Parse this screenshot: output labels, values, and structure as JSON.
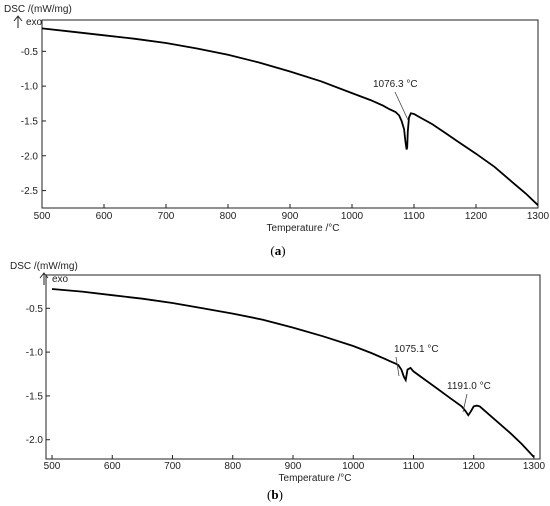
{
  "chart_data": [
    {
      "type": "line",
      "panel_label": "a",
      "ylabel": "DSC /(mW/mg)",
      "y_direction_label": "exo",
      "xlabel": "Temperature /°C",
      "xlim": [
        500,
        1300
      ],
      "ylim": [
        -2.75,
        -0.05
      ],
      "x_ticks": [
        500,
        600,
        700,
        800,
        900,
        1000,
        1100,
        1200,
        1300
      ],
      "y_ticks": [
        -0.5,
        -1.0,
        -1.5,
        -2.0,
        -2.5
      ],
      "y_tick_labels": [
        "-0.5",
        "-1.0",
        "-1.5",
        "-2.0",
        "-2.5"
      ],
      "grid": false,
      "series": [
        {
          "x": [
            500,
            550,
            600,
            650,
            700,
            750,
            800,
            850,
            900,
            950,
            1000,
            1030,
            1050,
            1060,
            1070,
            1076,
            1080,
            1084,
            1086,
            1088,
            1089,
            1090,
            1092,
            1095,
            1100,
            1110,
            1130,
            1150,
            1170,
            1200,
            1230,
            1260,
            1280,
            1300
          ],
          "y": [
            -0.17,
            -0.22,
            -0.27,
            -0.32,
            -0.38,
            -0.46,
            -0.55,
            -0.66,
            -0.79,
            -0.93,
            -1.1,
            -1.2,
            -1.28,
            -1.33,
            -1.37,
            -1.42,
            -1.5,
            -1.62,
            -1.78,
            -1.91,
            -1.88,
            -1.65,
            -1.45,
            -1.39,
            -1.4,
            -1.45,
            -1.55,
            -1.67,
            -1.79,
            -1.97,
            -2.16,
            -2.39,
            -2.54,
            -2.71
          ]
        }
      ],
      "annotations": [
        {
          "text": "1076.3 °C",
          "x": 1076.3,
          "y": -1.42
        }
      ]
    },
    {
      "type": "line",
      "panel_label": "b",
      "ylabel": "DSC /(mW/mg)",
      "y_direction_label": "exo",
      "xlabel": "Temperature /°C",
      "xlim": [
        490,
        1310
      ],
      "ylim": [
        -2.22,
        -0.12
      ],
      "x_ticks": [
        500,
        600,
        700,
        800,
        900,
        1000,
        1100,
        1200,
        1300
      ],
      "y_ticks": [
        -0.5,
        -1.0,
        -1.5,
        -2.0
      ],
      "y_tick_labels": [
        "-0.5",
        "-1.0",
        "-1.5",
        "-2.0"
      ],
      "grid": false,
      "series": [
        {
          "x": [
            500,
            550,
            600,
            650,
            700,
            750,
            800,
            850,
            900,
            950,
            1000,
            1030,
            1050,
            1060,
            1070,
            1075,
            1080,
            1084,
            1087,
            1090,
            1095,
            1100,
            1120,
            1140,
            1160,
            1180,
            1186,
            1191,
            1195,
            1200,
            1205,
            1210,
            1230,
            1260,
            1280,
            1300
          ],
          "y": [
            -0.28,
            -0.31,
            -0.35,
            -0.39,
            -0.44,
            -0.5,
            -0.56,
            -0.63,
            -0.72,
            -0.82,
            -0.93,
            -1.01,
            -1.07,
            -1.1,
            -1.13,
            -1.15,
            -1.2,
            -1.28,
            -1.32,
            -1.2,
            -1.18,
            -1.22,
            -1.32,
            -1.42,
            -1.52,
            -1.62,
            -1.67,
            -1.72,
            -1.68,
            -1.62,
            -1.61,
            -1.62,
            -1.74,
            -1.92,
            -2.05,
            -2.2
          ]
        }
      ],
      "annotations": [
        {
          "text": "1075.1 °C",
          "x": 1075.1,
          "y": -1.15
        },
        {
          "text": "1191.0 °C",
          "x": 1191.0,
          "y": -1.7
        }
      ]
    }
  ]
}
